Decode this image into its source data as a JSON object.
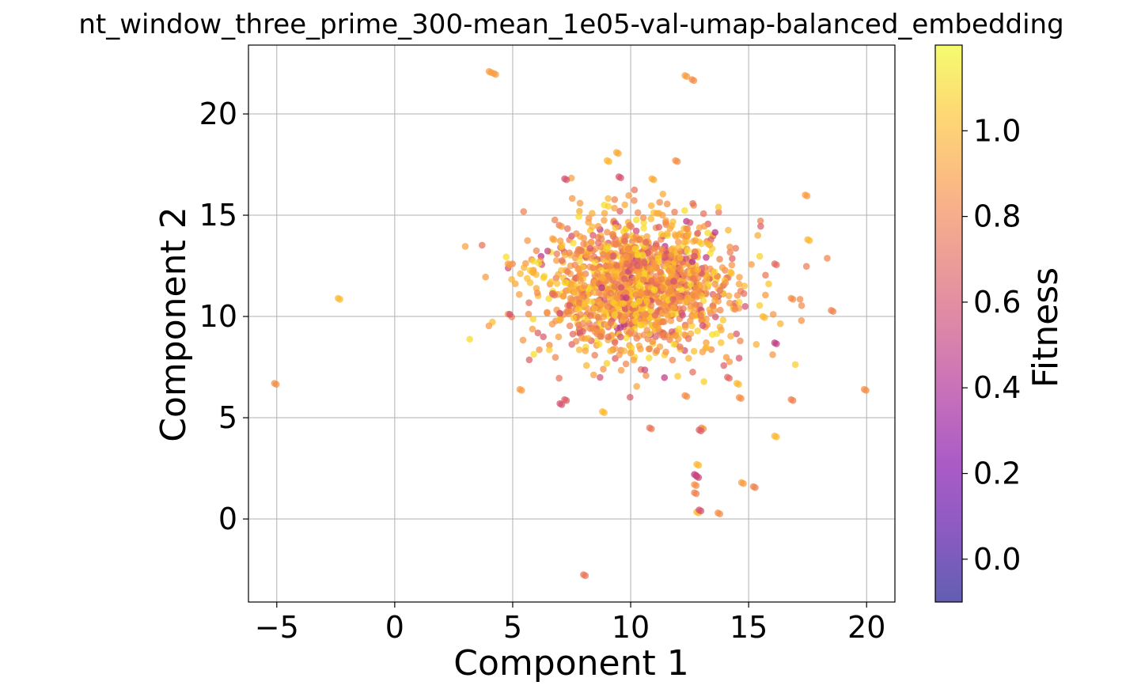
{
  "chart_data": {
    "type": "scatter",
    "title": "nt_window_three_prime_300-mean_1e05-val-umap-balanced_embedding",
    "xlabel": "Component 1",
    "ylabel": "Component 2",
    "xlim": [
      -6.2,
      21.2
    ],
    "ylim": [
      -4.1,
      23.4
    ],
    "x_ticks": [
      -5,
      0,
      5,
      10,
      15,
      20
    ],
    "x_tick_labels": [
      "−5",
      "0",
      "5",
      "10",
      "15",
      "20"
    ],
    "y_ticks": [
      0,
      5,
      10,
      15,
      20
    ],
    "y_tick_labels": [
      "0",
      "5",
      "10",
      "15",
      "20"
    ],
    "grid": true,
    "colorbar": {
      "label": "Fitness",
      "colormap": "plasma",
      "range": [
        -0.1,
        1.2
      ],
      "ticks": [
        0.0,
        0.2,
        0.4,
        0.6,
        0.8,
        1.0
      ],
      "tick_labels": [
        "0.0",
        "0.2",
        "0.4",
        "0.6",
        "0.8",
        "1.0"
      ]
    },
    "outlier_points": [
      {
        "x": 4.0,
        "y": 22.1,
        "fitness": 0.9
      },
      {
        "x": 4.2,
        "y": 22.0,
        "fitness": 0.9
      },
      {
        "x": 12.3,
        "y": 21.9,
        "fitness": 0.9
      },
      {
        "x": 12.6,
        "y": 21.7,
        "fitness": 0.85
      },
      {
        "x": 9.0,
        "y": 17.7,
        "fitness": 1.0
      },
      {
        "x": 9.4,
        "y": 18.1,
        "fitness": 0.95
      },
      {
        "x": 9.5,
        "y": 16.9,
        "fitness": 0.6
      },
      {
        "x": 7.2,
        "y": 16.8,
        "fitness": 0.6
      },
      {
        "x": 10.9,
        "y": 16.8,
        "fitness": 0.95
      },
      {
        "x": 11.9,
        "y": 17.7,
        "fitness": 0.85
      },
      {
        "x": 17.4,
        "y": 16.0,
        "fitness": 0.9
      },
      {
        "x": 17.5,
        "y": 13.8,
        "fitness": 1.0
      },
      {
        "x": 4.8,
        "y": 12.6,
        "fitness": 0.9
      },
      {
        "x": -2.4,
        "y": 10.9,
        "fitness": 1.0
      },
      {
        "x": -5.1,
        "y": 6.7,
        "fitness": 0.85
      },
      {
        "x": 5.3,
        "y": 6.4,
        "fitness": 0.9
      },
      {
        "x": 7.0,
        "y": 5.7,
        "fitness": 0.6
      },
      {
        "x": 7.2,
        "y": 5.9,
        "fitness": 0.65
      },
      {
        "x": 8.8,
        "y": 5.3,
        "fitness": 1.0
      },
      {
        "x": 10.8,
        "y": 4.5,
        "fitness": 0.75
      },
      {
        "x": 13.0,
        "y": 4.5,
        "fitness": 0.85
      },
      {
        "x": 12.9,
        "y": 4.4,
        "fitness": 0.65
      },
      {
        "x": 16.1,
        "y": 4.1,
        "fitness": 1.0
      },
      {
        "x": 16.8,
        "y": 5.9,
        "fitness": 0.8
      },
      {
        "x": 19.9,
        "y": 6.4,
        "fitness": 0.85
      },
      {
        "x": 18.5,
        "y": 10.3,
        "fitness": 0.8
      },
      {
        "x": 16.1,
        "y": 8.7,
        "fitness": 0.5
      },
      {
        "x": 16.1,
        "y": 12.6,
        "fitness": 0.7
      },
      {
        "x": 16.8,
        "y": 10.9,
        "fitness": 0.85
      },
      {
        "x": 15.6,
        "y": 10.0,
        "fitness": 1.0
      },
      {
        "x": 12.8,
        "y": 2.7,
        "fitness": 1.0
      },
      {
        "x": 12.7,
        "y": 2.2,
        "fitness": 0.5
      },
      {
        "x": 12.8,
        "y": 2.1,
        "fitness": 0.55
      },
      {
        "x": 12.7,
        "y": 1.7,
        "fitness": 0.85
      },
      {
        "x": 12.7,
        "y": 1.3,
        "fitness": 0.8
      },
      {
        "x": 12.8,
        "y": 0.35,
        "fitness": 1.0
      },
      {
        "x": 12.9,
        "y": 0.45,
        "fitness": 0.6
      },
      {
        "x": 13.7,
        "y": 0.3,
        "fitness": 0.85
      },
      {
        "x": 14.7,
        "y": 1.8,
        "fitness": 0.9
      },
      {
        "x": 15.2,
        "y": 1.6,
        "fitness": 0.8
      },
      {
        "x": 8.0,
        "y": -2.75,
        "fitness": 0.75
      },
      {
        "x": 14.5,
        "y": 6.7,
        "fitness": 1.0
      },
      {
        "x": 14.6,
        "y": 6.0,
        "fitness": 0.85
      },
      {
        "x": 12.3,
        "y": 6.1,
        "fitness": 0.85
      },
      {
        "x": 14.1,
        "y": 7.0,
        "fitness": 0.7
      }
    ],
    "cluster": {
      "description_count": 1500,
      "center": [
        10.3,
        11.5
      ],
      "spread": [
        2.1,
        1.7
      ],
      "fitness_mean": 0.9,
      "fitness_sd": 0.14
    }
  }
}
